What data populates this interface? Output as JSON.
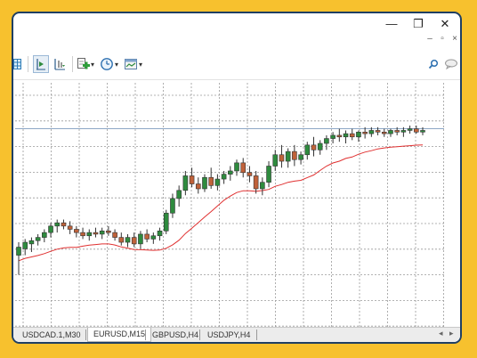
{
  "window": {
    "minimize_glyph": "—",
    "restore_glyph": "❐",
    "close_glyph": "✕",
    "mdi_minimize_glyph": "–",
    "mdi_restore_glyph": "▫",
    "mdi_close_glyph": "×"
  },
  "toolbar": {
    "icons": [
      "grid-icon",
      "chart-shift-icon",
      "autoscroll-icon",
      "indicators-icon",
      "periods-clock-icon",
      "templates-icon"
    ],
    "dropdown_glyph": "▾"
  },
  "tabs": [
    {
      "label": "USDCAD.1,M30",
      "active": false
    },
    {
      "label": "EURUSD,M15",
      "active": true
    },
    {
      "label": "GBPUSD,H4",
      "active": false
    },
    {
      "label": "USDJPY,H4",
      "active": false
    }
  ],
  "scroll": {
    "left_glyph": "◂",
    "right_glyph": "▸"
  },
  "chart_data": {
    "type": "candlestick",
    "bull_color": "#2e8b3e",
    "bear_color": "#c0623a",
    "ma_color": "#e03030",
    "grid": true,
    "candles": [
      {
        "o": 0.2,
        "h": 0.28,
        "l": 0.08,
        "c": 0.25
      },
      {
        "o": 0.24,
        "h": 0.3,
        "l": 0.2,
        "c": 0.28
      },
      {
        "o": 0.27,
        "h": 0.31,
        "l": 0.22,
        "c": 0.29
      },
      {
        "o": 0.29,
        "h": 0.33,
        "l": 0.26,
        "c": 0.31
      },
      {
        "o": 0.31,
        "h": 0.36,
        "l": 0.28,
        "c": 0.34
      },
      {
        "o": 0.34,
        "h": 0.4,
        "l": 0.31,
        "c": 0.38
      },
      {
        "o": 0.38,
        "h": 0.42,
        "l": 0.34,
        "c": 0.4
      },
      {
        "o": 0.4,
        "h": 0.42,
        "l": 0.36,
        "c": 0.38
      },
      {
        "o": 0.38,
        "h": 0.41,
        "l": 0.33,
        "c": 0.36
      },
      {
        "o": 0.36,
        "h": 0.38,
        "l": 0.31,
        "c": 0.34
      },
      {
        "o": 0.34,
        "h": 0.37,
        "l": 0.3,
        "c": 0.32
      },
      {
        "o": 0.32,
        "h": 0.36,
        "l": 0.29,
        "c": 0.34
      },
      {
        "o": 0.34,
        "h": 0.37,
        "l": 0.31,
        "c": 0.33
      },
      {
        "o": 0.33,
        "h": 0.37,
        "l": 0.3,
        "c": 0.35
      },
      {
        "o": 0.35,
        "h": 0.38,
        "l": 0.32,
        "c": 0.34
      },
      {
        "o": 0.34,
        "h": 0.36,
        "l": 0.29,
        "c": 0.31
      },
      {
        "o": 0.31,
        "h": 0.34,
        "l": 0.26,
        "c": 0.28
      },
      {
        "o": 0.28,
        "h": 0.33,
        "l": 0.25,
        "c": 0.31
      },
      {
        "o": 0.31,
        "h": 0.34,
        "l": 0.25,
        "c": 0.27
      },
      {
        "o": 0.27,
        "h": 0.35,
        "l": 0.24,
        "c": 0.33
      },
      {
        "o": 0.33,
        "h": 0.36,
        "l": 0.28,
        "c": 0.3
      },
      {
        "o": 0.3,
        "h": 0.34,
        "l": 0.27,
        "c": 0.32
      },
      {
        "o": 0.32,
        "h": 0.37,
        "l": 0.29,
        "c": 0.35
      },
      {
        "o": 0.35,
        "h": 0.48,
        "l": 0.33,
        "c": 0.46
      },
      {
        "o": 0.46,
        "h": 0.58,
        "l": 0.43,
        "c": 0.55
      },
      {
        "o": 0.55,
        "h": 0.63,
        "l": 0.5,
        "c": 0.6
      },
      {
        "o": 0.6,
        "h": 0.72,
        "l": 0.57,
        "c": 0.69
      },
      {
        "o": 0.69,
        "h": 0.74,
        "l": 0.62,
        "c": 0.64
      },
      {
        "o": 0.64,
        "h": 0.68,
        "l": 0.58,
        "c": 0.61
      },
      {
        "o": 0.61,
        "h": 0.7,
        "l": 0.59,
        "c": 0.68
      },
      {
        "o": 0.68,
        "h": 0.74,
        "l": 0.61,
        "c": 0.63
      },
      {
        "o": 0.63,
        "h": 0.7,
        "l": 0.6,
        "c": 0.67
      },
      {
        "o": 0.67,
        "h": 0.72,
        "l": 0.64,
        "c": 0.7
      },
      {
        "o": 0.7,
        "h": 0.75,
        "l": 0.66,
        "c": 0.72
      },
      {
        "o": 0.72,
        "h": 0.79,
        "l": 0.69,
        "c": 0.77
      },
      {
        "o": 0.77,
        "h": 0.8,
        "l": 0.68,
        "c": 0.71
      },
      {
        "o": 0.71,
        "h": 0.75,
        "l": 0.65,
        "c": 0.69
      },
      {
        "o": 0.69,
        "h": 0.72,
        "l": 0.58,
        "c": 0.61
      },
      {
        "o": 0.61,
        "h": 0.68,
        "l": 0.57,
        "c": 0.65
      },
      {
        "o": 0.65,
        "h": 0.78,
        "l": 0.62,
        "c": 0.75
      },
      {
        "o": 0.75,
        "h": 0.85,
        "l": 0.72,
        "c": 0.82
      },
      {
        "o": 0.82,
        "h": 0.88,
        "l": 0.74,
        "c": 0.78
      },
      {
        "o": 0.78,
        "h": 0.86,
        "l": 0.74,
        "c": 0.84
      },
      {
        "o": 0.84,
        "h": 0.88,
        "l": 0.75,
        "c": 0.79
      },
      {
        "o": 0.79,
        "h": 0.84,
        "l": 0.76,
        "c": 0.82
      },
      {
        "o": 0.82,
        "h": 0.9,
        "l": 0.79,
        "c": 0.88
      },
      {
        "o": 0.88,
        "h": 0.93,
        "l": 0.81,
        "c": 0.85
      },
      {
        "o": 0.85,
        "h": 0.91,
        "l": 0.82,
        "c": 0.89
      },
      {
        "o": 0.89,
        "h": 0.94,
        "l": 0.85,
        "c": 0.92
      },
      {
        "o": 0.92,
        "h": 0.96,
        "l": 0.89,
        "c": 0.94
      },
      {
        "o": 0.94,
        "h": 0.98,
        "l": 0.9,
        "c": 0.93
      },
      {
        "o": 0.93,
        "h": 0.97,
        "l": 0.89,
        "c": 0.95
      },
      {
        "o": 0.95,
        "h": 0.98,
        "l": 0.91,
        "c": 0.93
      },
      {
        "o": 0.93,
        "h": 0.97,
        "l": 0.9,
        "c": 0.96
      },
      {
        "o": 0.96,
        "h": 0.99,
        "l": 0.92,
        "c": 0.95
      },
      {
        "o": 0.95,
        "h": 0.99,
        "l": 0.93,
        "c": 0.97
      },
      {
        "o": 0.97,
        "h": 0.99,
        "l": 0.94,
        "c": 0.96
      },
      {
        "o": 0.96,
        "h": 0.98,
        "l": 0.93,
        "c": 0.95
      },
      {
        "o": 0.95,
        "h": 0.98,
        "l": 0.93,
        "c": 0.97
      },
      {
        "o": 0.97,
        "h": 0.99,
        "l": 0.94,
        "c": 0.96
      },
      {
        "o": 0.96,
        "h": 0.99,
        "l": 0.93,
        "c": 0.97
      },
      {
        "o": 0.97,
        "h": 1.0,
        "l": 0.95,
        "c": 0.98
      },
      {
        "o": 0.98,
        "h": 1.0,
        "l": 0.95,
        "c": 0.96
      },
      {
        "o": 0.96,
        "h": 0.99,
        "l": 0.94,
        "c": 0.97
      }
    ],
    "ma_period": 10
  }
}
